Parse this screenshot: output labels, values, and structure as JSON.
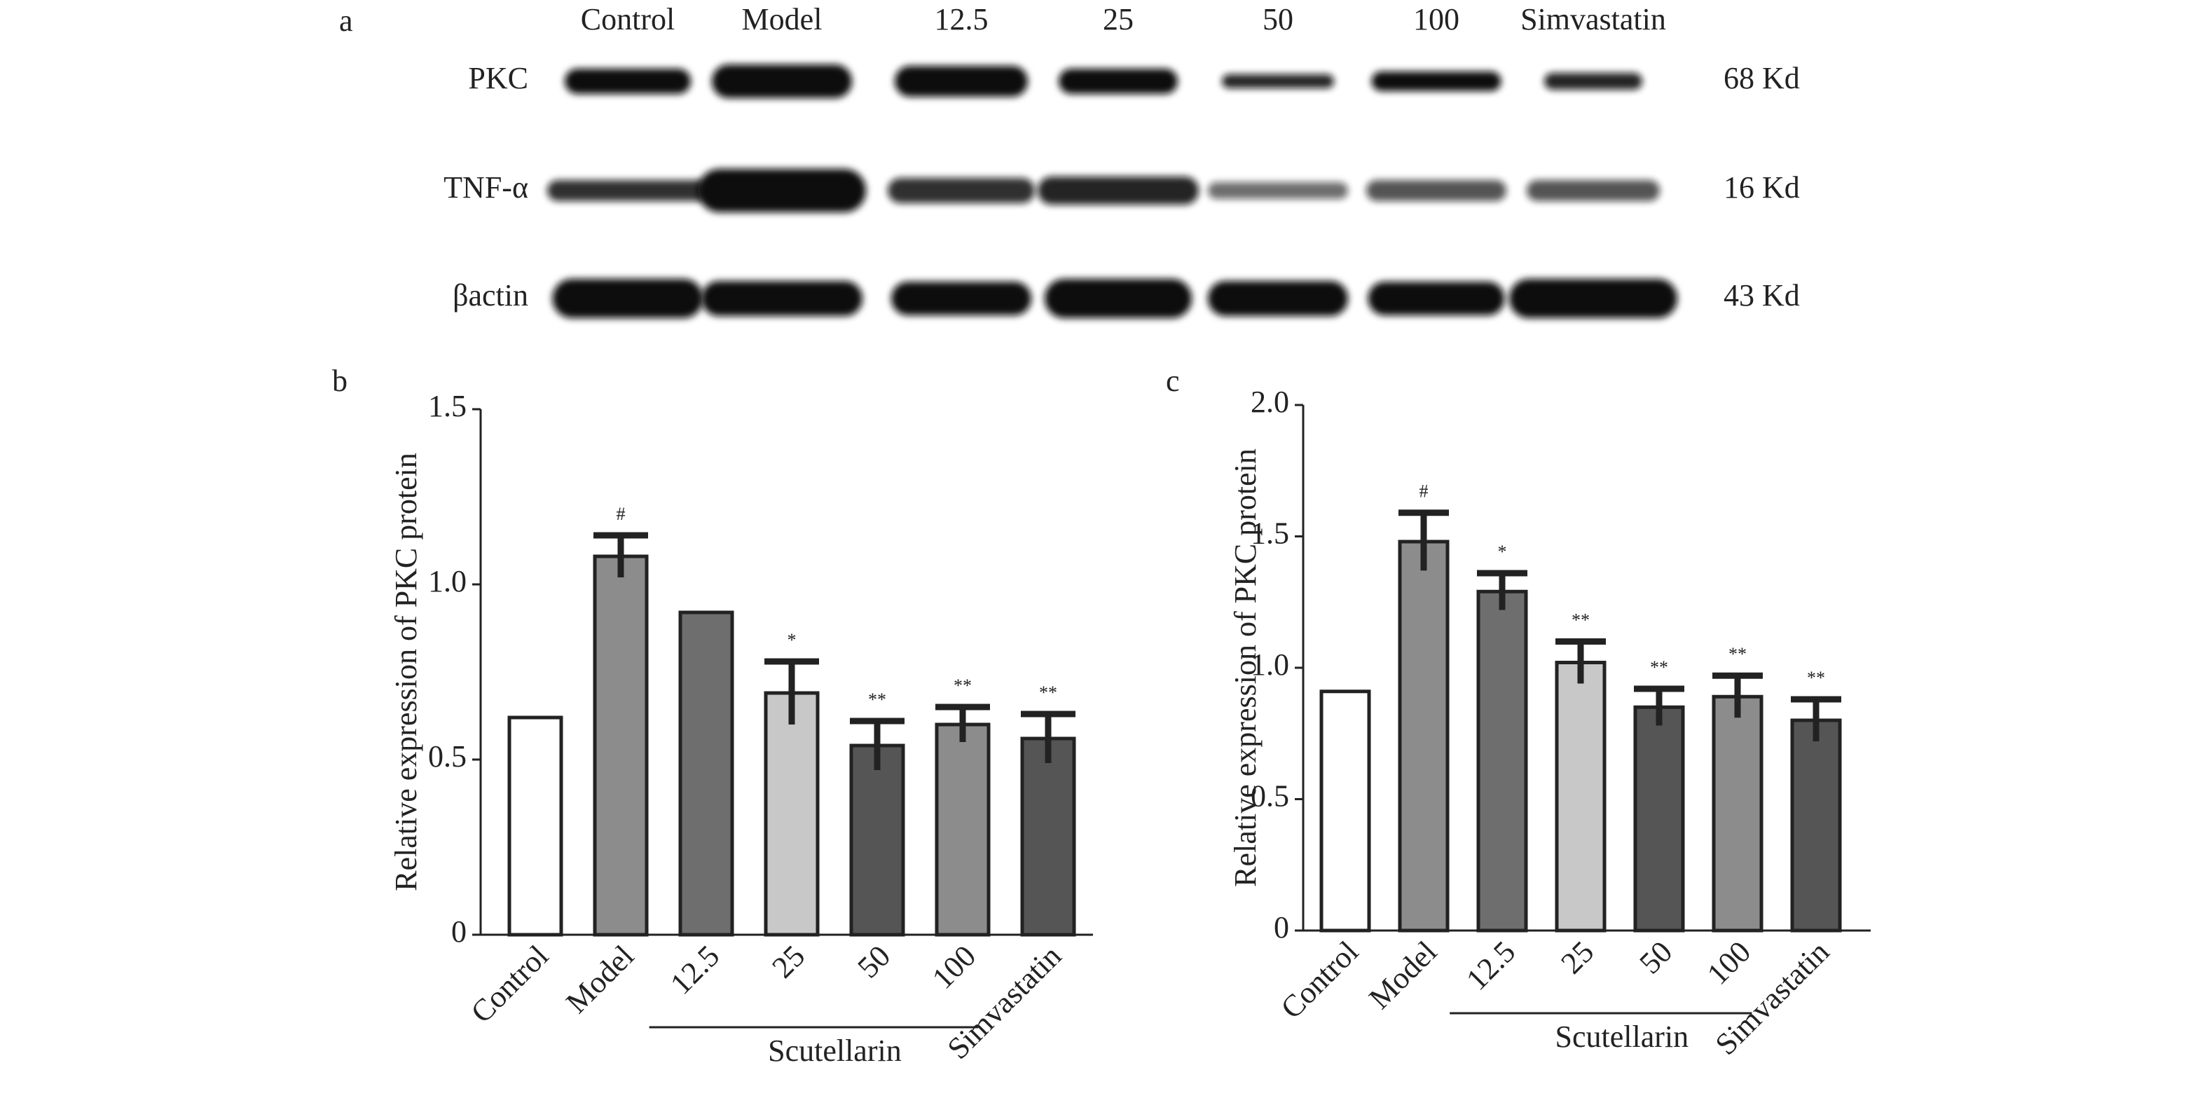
{
  "blot": {
    "panel_label": "a",
    "lanes": [
      "Control",
      "Model",
      "12.5",
      "25",
      "50",
      "100",
      "Simvastatin"
    ],
    "rows": [
      {
        "label": "PKC",
        "size": "68 Kd"
      },
      {
        "label": "TNF-α",
        "size": "16 Kd"
      },
      {
        "label": "βactin",
        "size": "43 Kd"
      }
    ]
  },
  "chart_data": [
    {
      "type": "bar",
      "panel_label": "b",
      "ylabel": "Relative expression of PKC protein",
      "categories": [
        "Control",
        "Model",
        "12.5",
        "25",
        "50",
        "100",
        "Simvastatin"
      ],
      "values": [
        0.62,
        1.08,
        0.92,
        0.69,
        0.54,
        0.6,
        0.56
      ],
      "errors": [
        null,
        0.06,
        null,
        0.09,
        0.07,
        0.05,
        0.07
      ],
      "annotations": [
        null,
        "#",
        null,
        "*",
        "**",
        "**",
        "**"
      ],
      "colors": [
        "#ffffff",
        "#8c8c8c",
        "#6e6e6e",
        "#c8c8c8",
        "#555555",
        "#8c8c8c",
        "#555555"
      ],
      "group_label": "Scutellarin",
      "ylim": [
        0,
        1.5
      ],
      "yticks": [
        0,
        0.5,
        {
          "value": 1,
          "label": "1.0"
        },
        1.5
      ]
    },
    {
      "type": "bar",
      "panel_label": "c",
      "ylabel": "Relative expression of PKC protein",
      "categories": [
        "Control",
        "Model",
        "12.5",
        "25",
        "50",
        "100",
        "Simvastatin"
      ],
      "values": [
        0.91,
        1.48,
        1.29,
        1.02,
        0.85,
        0.89,
        0.8
      ],
      "errors": [
        null,
        0.11,
        0.07,
        0.08,
        0.07,
        0.08,
        0.08
      ],
      "annotations": [
        null,
        "#",
        "*",
        "**",
        "**",
        "**",
        "**"
      ],
      "colors": [
        "#ffffff",
        "#8c8c8c",
        "#6e6e6e",
        "#c8c8c8",
        "#555555",
        "#8c8c8c",
        "#555555"
      ],
      "group_label": "Scutellarin",
      "ylim": [
        0,
        2
      ],
      "yticks": [
        0,
        0.5,
        {
          "value": 1,
          "label": "1.0"
        },
        1.5,
        {
          "value": 2,
          "label": "2.0"
        }
      ]
    }
  ]
}
